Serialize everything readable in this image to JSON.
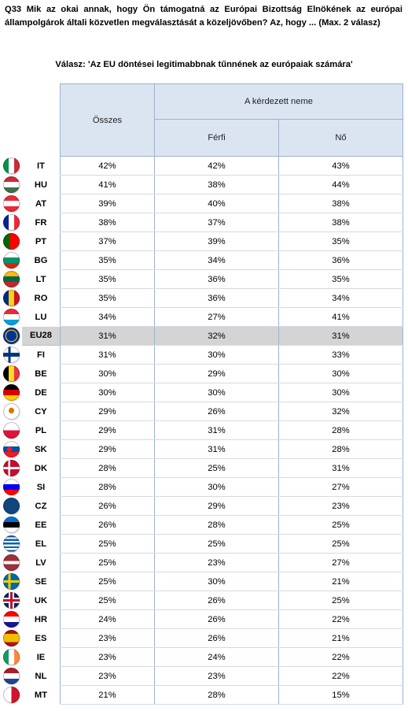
{
  "question": "Q33 Mik az okai annak, hogy Ön támogatná az Európai Bizottság Elnökének az európai állampolgárok általi közvetlen megválasztását a közeljövőben? Az, hogy ... (Max. 2 válasz)",
  "answer": "Válasz: 'Az EU döntései legitimabbnak tűnnének az európaiak számára'",
  "headers": {
    "total": "Összes",
    "group": "A kérdezett neme",
    "male": "Férfi",
    "female": "Nő"
  },
  "rows": [
    {
      "code": "IT",
      "total": "42%",
      "male": "42%",
      "female": "43%",
      "flag": "linear-gradient(to right,#009246 33%,#ffffff 33% 66%,#ce2b37 66%)"
    },
    {
      "code": "HU",
      "total": "41%",
      "male": "38%",
      "female": "44%",
      "flag": "linear-gradient(to bottom,#cd2a3e 33%,#ffffff 33% 66%,#436f4d 66%)"
    },
    {
      "code": "AT",
      "total": "39%",
      "male": "40%",
      "female": "38%",
      "flag": "linear-gradient(to bottom,#ed2939 33%,#ffffff 33% 66%,#ed2939 66%)"
    },
    {
      "code": "FR",
      "total": "38%",
      "male": "37%",
      "female": "38%",
      "flag": "linear-gradient(to right,#002395 33%,#ffffff 33% 66%,#ed2939 66%)"
    },
    {
      "code": "PT",
      "total": "37%",
      "male": "39%",
      "female": "35%",
      "flag": "linear-gradient(to right,#006600 40%,#ff0000 40%)"
    },
    {
      "code": "BG",
      "total": "35%",
      "male": "34%",
      "female": "36%",
      "flag": "linear-gradient(to bottom,#ffffff 33%,#00966e 33% 66%,#d62612 66%)"
    },
    {
      "code": "LT",
      "total": "35%",
      "male": "36%",
      "female": "35%",
      "flag": "linear-gradient(to bottom,#fdb913 33%,#006a44 33% 66%,#c1272d 66%)"
    },
    {
      "code": "RO",
      "total": "35%",
      "male": "36%",
      "female": "34%",
      "flag": "linear-gradient(to right,#002b7f 33%,#fcd116 33% 66%,#ce1126 66%)"
    },
    {
      "code": "LU",
      "total": "34%",
      "male": "27%",
      "female": "41%",
      "flag": "linear-gradient(to bottom,#ed2939 33%,#ffffff 33% 66%,#00a1de 66%)"
    },
    {
      "code": "EU28",
      "total": "31%",
      "male": "32%",
      "female": "31%",
      "flag": "radial-gradient(circle,#003399 45%,#ffcc00 46% 52%,#003399 53%)",
      "eu": true
    },
    {
      "code": "FI",
      "total": "31%",
      "male": "30%",
      "female": "33%",
      "flag": "linear-gradient(to bottom,transparent 38%,#003580 38% 62%,transparent 62%),linear-gradient(to right,#ffffff 30%,#003580 30% 46%,#ffffff 46%)"
    },
    {
      "code": "BE",
      "total": "30%",
      "male": "29%",
      "female": "30%",
      "flag": "linear-gradient(to right,#000000 33%,#fdda24 33% 66%,#ef3340 66%)"
    },
    {
      "code": "DE",
      "total": "30%",
      "male": "30%",
      "female": "30%",
      "flag": "linear-gradient(to bottom,#000000 33%,#dd0000 33% 66%,#ffce00 66%)"
    },
    {
      "code": "CY",
      "total": "29%",
      "male": "26%",
      "female": "32%",
      "flag": "radial-gradient(ellipse at 50% 45%,#d57800 22%,#ffffff 24%)"
    },
    {
      "code": "PL",
      "total": "29%",
      "male": "31%",
      "female": "28%",
      "flag": "linear-gradient(to bottom,#ffffff 50%,#dc143c 50%)"
    },
    {
      "code": "SK",
      "total": "29%",
      "male": "31%",
      "female": "28%",
      "flag": "radial-gradient(circle at 38% 50%,#ee1c25 18%,transparent 19%),linear-gradient(to bottom,#ffffff 33%,#0b4ea2 33% 66%,#ee1c25 66%)"
    },
    {
      "code": "DK",
      "total": "28%",
      "male": "25%",
      "female": "31%",
      "flag": "linear-gradient(to bottom,transparent 42%,#ffffff 42% 58%,transparent 58%),linear-gradient(to right,#c60c30 30%,#ffffff 30% 44%,#c60c30 44%)"
    },
    {
      "code": "SI",
      "total": "28%",
      "male": "30%",
      "female": "27%",
      "flag": "linear-gradient(to bottom,#ffffff 33%,#0000ff 33% 66%,#ff0000 66%)"
    },
    {
      "code": "CZ",
      "total": "26%",
      "male": "29%",
      "female": "23%",
      "flag": "linear-gradient(to right,#11457e 0 0),linear-gradient(to bottom,#ffffff 50%,#d7141a 50%)"
    },
    {
      "code": "EE",
      "total": "26%",
      "male": "28%",
      "female": "25%",
      "flag": "linear-gradient(to bottom,#0072ce 33%,#000000 33% 66%,#ffffff 66%)"
    },
    {
      "code": "EL",
      "total": "25%",
      "male": "25%",
      "female": "25%",
      "flag": "repeating-linear-gradient(to bottom,#0d5eaf 0 2.3px,#ffffff 2.3px 4.6px)"
    },
    {
      "code": "LV",
      "total": "25%",
      "male": "23%",
      "female": "27%",
      "flag": "linear-gradient(to bottom,#9e3039 40%,#ffffff 40% 60%,#9e3039 60%)"
    },
    {
      "code": "SE",
      "total": "25%",
      "male": "30%",
      "female": "21%",
      "flag": "linear-gradient(to bottom,transparent 42%,#fecc00 42% 58%,transparent 58%),linear-gradient(to right,#006aa7 30%,#fecc00 30% 46%,#006aa7 46%)"
    },
    {
      "code": "UK",
      "total": "25%",
      "male": "26%",
      "female": "25%",
      "flag": "linear-gradient(to bottom,transparent 42%,#c8102e 42% 58%,transparent 58%),linear-gradient(to right,transparent 42%,#c8102e 42% 58%,transparent 58%),linear-gradient(to bottom,transparent 34%,#ffffff 34% 66%,transparent 66%),linear-gradient(to right,#012169 34%,#ffffff 34% 66%,#012169 66%)"
    },
    {
      "code": "HR",
      "total": "24%",
      "male": "26%",
      "female": "22%",
      "flag": "linear-gradient(to bottom,#ff0000 33%,#ffffff 33% 66%,#171796 66%)"
    },
    {
      "code": "ES",
      "total": "23%",
      "male": "26%",
      "female": "21%",
      "flag": "linear-gradient(to bottom,#aa151b 25%,#f1bf00 25% 75%,#aa151b 75%)"
    },
    {
      "code": "IE",
      "total": "23%",
      "male": "24%",
      "female": "22%",
      "flag": "linear-gradient(to right,#169b62 33%,#ffffff 33% 66%,#ff883e 66%)"
    },
    {
      "code": "NL",
      "total": "23%",
      "male": "23%",
      "female": "22%",
      "flag": "linear-gradient(to bottom,#ae1c28 33%,#ffffff 33% 66%,#21468b 66%)"
    },
    {
      "code": "MT",
      "total": "21%",
      "male": "28%",
      "female": "15%",
      "flag": "linear-gradient(to right,#ffffff 50%,#cf142b 50%)"
    }
  ]
}
